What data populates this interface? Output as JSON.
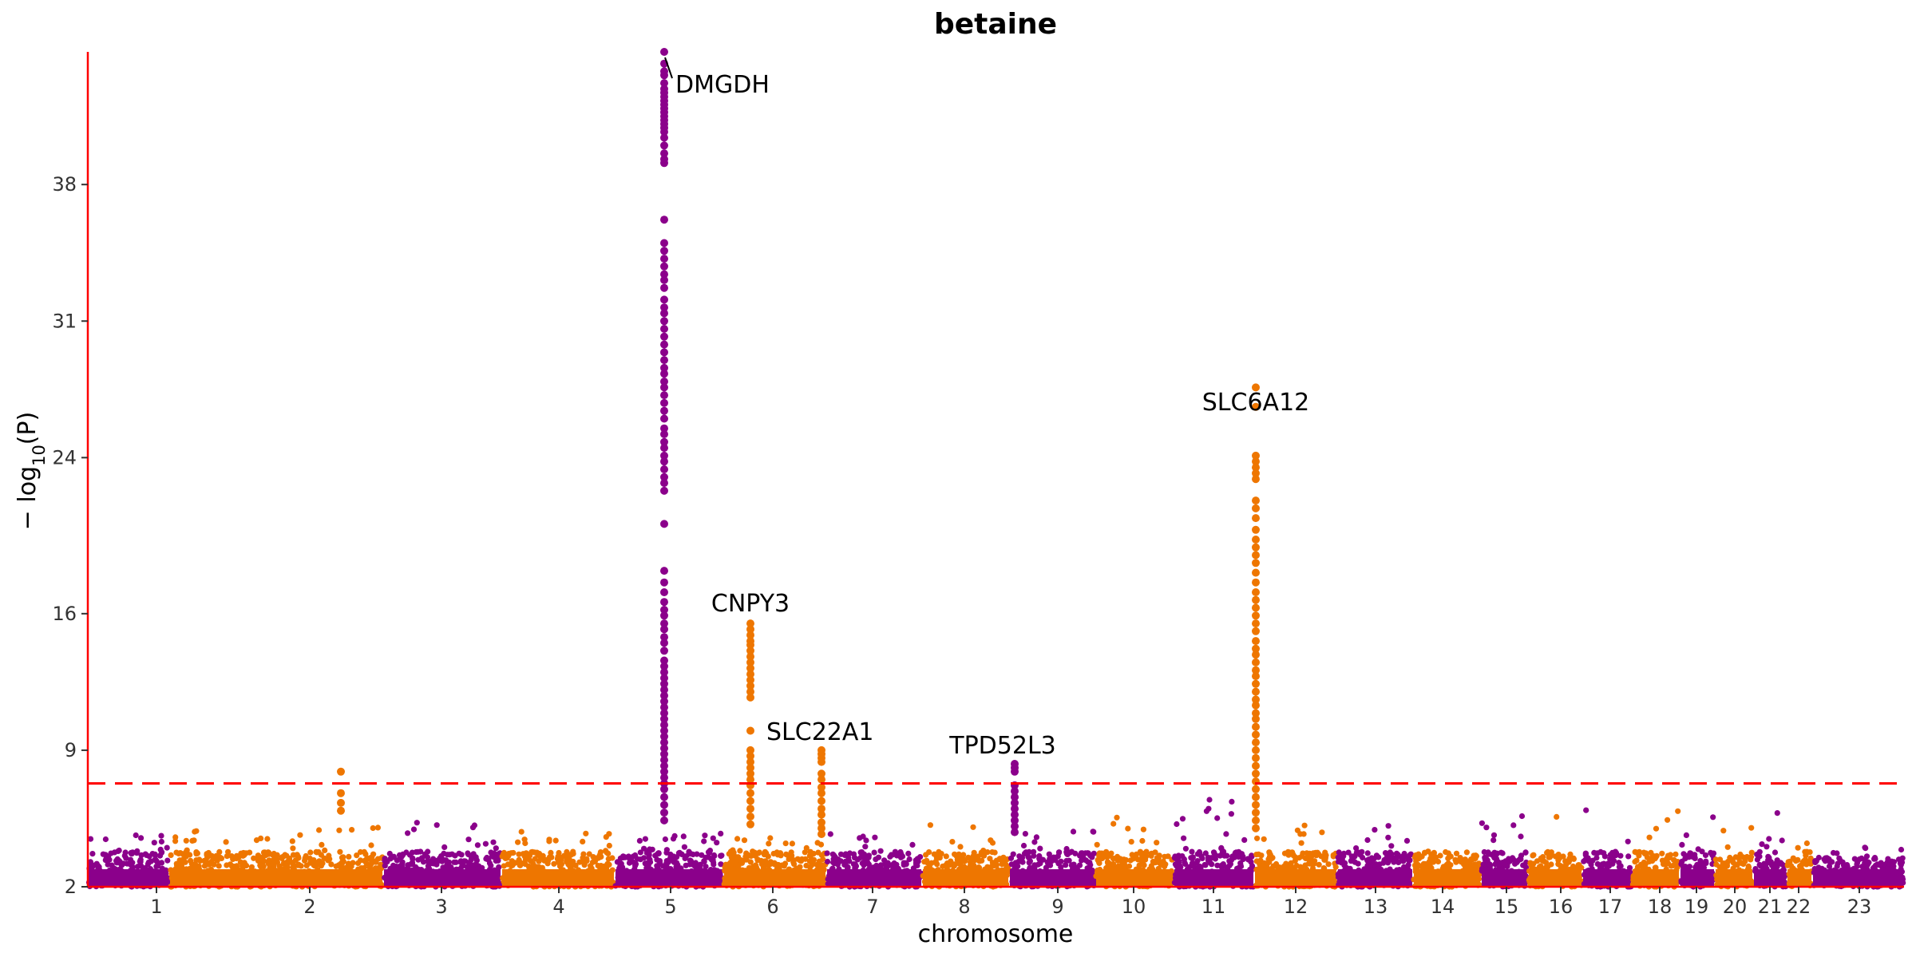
{
  "chart_data": {
    "type": "scatter",
    "subtype": "manhattan",
    "title": "betaine",
    "xlabel": "chromosome",
    "ylabel": "−log10(P)",
    "ylabel_parts": {
      "prefix": "− log",
      "subscript": "10",
      "suffix": "(P)"
    },
    "ylim": [
      2,
      44.8
    ],
    "yticks": [
      2,
      9,
      16,
      24,
      31,
      38
    ],
    "grid": false,
    "legend": "none",
    "significance_threshold": 7.3,
    "colors": {
      "odd": "#8B008B",
      "even": "#EE7600",
      "threshold": "#FF0000",
      "axis": "#FF0000"
    },
    "chromosomes": [
      {
        "label": "1",
        "background_max": 4.7
      },
      {
        "label": "2",
        "background_max": 5.2
      },
      {
        "label": "3",
        "background_max": 5.4
      },
      {
        "label": "4",
        "background_max": 4.9
      },
      {
        "label": "5",
        "background_max": 4.8
      },
      {
        "label": "6",
        "background_max": 4.7
      },
      {
        "label": "7",
        "background_max": 4.8
      },
      {
        "label": "8",
        "background_max": 5.3
      },
      {
        "label": "9",
        "background_max": 5.0
      },
      {
        "label": "10",
        "background_max": 5.6
      },
      {
        "label": "11",
        "background_max": 6.5
      },
      {
        "label": "12",
        "background_max": 5.5
      },
      {
        "label": "13",
        "background_max": 5.2
      },
      {
        "label": "14",
        "background_max": 5.0
      },
      {
        "label": "15",
        "background_max": 5.7
      },
      {
        "label": "16",
        "background_max": 6.3
      },
      {
        "label": "17",
        "background_max": 6.4
      },
      {
        "label": "18",
        "background_max": 6.3
      },
      {
        "label": "19",
        "background_max": 5.6
      },
      {
        "label": "20",
        "background_max": 5.2
      },
      {
        "label": "21",
        "background_max": 6.0
      },
      {
        "label": "22",
        "background_max": 4.6
      },
      {
        "label": "23",
        "background_max": 4.1
      }
    ],
    "peaks": [
      {
        "gene": "DMGDH",
        "chromosome": "5",
        "top": 44.8,
        "values": [
          44.8,
          44.2,
          43.8,
          43.6,
          43.2,
          42.9,
          42.7,
          42.5,
          42.3,
          42.1,
          41.9,
          41.7,
          41.5,
          41.3,
          41.1,
          40.9,
          40.7,
          40.4,
          40.0,
          39.6,
          39.3,
          39.1,
          36.2,
          35.0,
          34.6,
          34.2,
          33.8,
          33.4,
          33.1,
          32.7,
          32.1,
          31.7,
          31.4,
          31.0,
          30.6,
          30.2,
          29.8,
          29.4,
          29.0,
          28.6,
          28.3,
          27.9,
          27.6,
          27.2,
          26.8,
          26.4,
          26.0,
          25.5,
          25.2,
          24.8,
          24.5,
          24.1,
          23.8,
          23.4,
          23.0,
          22.7,
          22.3,
          20.6,
          18.2,
          17.6,
          17.1,
          16.6,
          16.2,
          15.9,
          15.5,
          15.2,
          14.8,
          14.5,
          14.1,
          13.6,
          13.3,
          13.0,
          12.7,
          12.4,
          12.1,
          11.8,
          11.5,
          11.2,
          10.9,
          10.6,
          10.3,
          10.0,
          9.7,
          9.4,
          9.1,
          8.8,
          8.5,
          8.2,
          7.9,
          7.6,
          7.3,
          7.0,
          6.6,
          6.2,
          5.8,
          5.4
        ]
      },
      {
        "gene": "CNPY3",
        "chromosome": "6",
        "top": 15.5,
        "values": [
          15.5,
          15.2,
          14.9,
          14.6,
          14.4,
          14.1,
          13.8,
          13.5,
          13.2,
          12.9,
          12.6,
          12.3,
          12.0,
          11.7,
          10.0,
          9.0,
          8.7,
          8.4,
          8.1,
          7.8,
          7.5,
          7.2,
          6.8,
          6.4,
          6.0,
          5.6,
          5.2
        ]
      },
      {
        "gene": "SLC22A1",
        "chromosome": "6",
        "top": 9.0,
        "values": [
          9.0,
          8.8,
          8.6,
          8.4,
          7.8,
          7.5,
          7.1,
          6.8,
          6.4,
          6.0,
          5.7,
          5.3,
          5.0,
          4.7
        ]
      },
      {
        "gene": "TPD52L3",
        "chromosome": "9",
        "top": 8.3,
        "values": [
          8.3,
          8.1,
          7.9,
          7.2,
          6.9,
          6.6,
          6.3,
          6.0,
          5.7,
          5.4,
          5.1,
          4.8
        ]
      },
      {
        "gene": "SLC6A12",
        "chromosome": "12",
        "top": 27.6,
        "values": [
          27.6,
          26.6,
          24.1,
          23.8,
          23.5,
          23.2,
          22.9,
          21.8,
          21.4,
          20.9,
          20.3,
          19.8,
          19.4,
          19.0,
          18.6,
          18.1,
          17.6,
          17.1,
          16.7,
          16.3,
          15.9,
          15.5,
          15.1,
          14.6,
          14.2,
          13.9,
          13.5,
          13.1,
          12.8,
          12.4,
          12.0,
          11.6,
          11.3,
          10.9,
          10.6,
          10.2,
          9.8,
          9.4,
          9.0,
          8.6,
          8.2,
          7.8,
          7.4,
          7.0,
          6.6,
          6.2,
          5.8,
          5.4,
          5.0
        ]
      }
    ],
    "minor_hits": [
      {
        "chromosome": "2",
        "values": [
          7.9,
          6.8,
          6.3,
          5.9
        ]
      }
    ],
    "annotations": [
      {
        "text": "DMGDH",
        "target": "DMGDH"
      },
      {
        "text": "CNPY3",
        "target": "CNPY3"
      },
      {
        "text": "SLC22A1",
        "target": "SLC22A1"
      },
      {
        "text": "TPD52L3",
        "target": "TPD52L3"
      },
      {
        "text": "SLC6A12",
        "target": "SLC6A12"
      }
    ]
  }
}
